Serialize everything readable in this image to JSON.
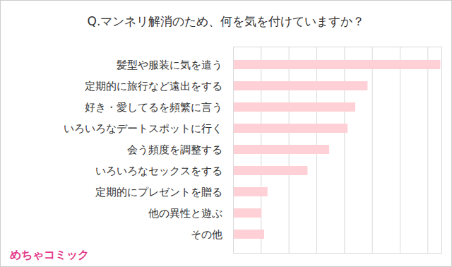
{
  "chart_data": {
    "type": "bar",
    "orientation": "horizontal",
    "title": "Q.マンネリ解消のため、何を気を付けていますか？",
    "categories": [
      "髪型や服装に気を遣う",
      "定期的に旅行など遠出をする",
      "好き・愛してるを頻繁に言う",
      "いろいろなデートスポットに行く",
      "会う頻度を調整する",
      "いろいろなセックスをする",
      "定期的にプレゼントを贈る",
      "他の異性と遊ぶ",
      "その他"
    ],
    "values": [
      37.3,
      24.2,
      22,
      20.6,
      17.3,
      13.4,
      6.2,
      5.1,
      5.6
    ],
    "color": "#ffd0d6",
    "xlim": [
      0,
      37.5
    ],
    "xticks": [
      0,
      5,
      10,
      15,
      20,
      25,
      30,
      35
    ],
    "grid": true,
    "tick_labels": "y",
    "annotations": [
      "めちゃコミック"
    ]
  }
}
